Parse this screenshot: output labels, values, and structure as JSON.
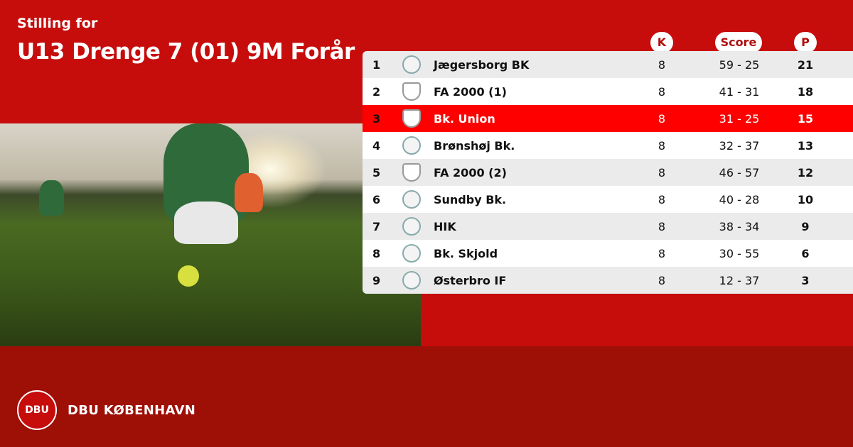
{
  "header": {
    "subtitle": "Stilling for",
    "title": "U13 Drenge 7 (01) 9M Forår"
  },
  "columns": {
    "k": "K",
    "score": "Score",
    "p": "P"
  },
  "rows": [
    {
      "pos": "1",
      "team": "Jægersborg BK",
      "k": "8",
      "score": "59 - 25",
      "p": "21"
    },
    {
      "pos": "2",
      "team": "FA 2000 (1)",
      "k": "8",
      "score": "41 - 31",
      "p": "18"
    },
    {
      "pos": "3",
      "team": "Bk. Union",
      "k": "8",
      "score": "31 - 25",
      "p": "15",
      "highlight": true
    },
    {
      "pos": "4",
      "team": "Brønshøj Bk.",
      "k": "8",
      "score": "32 - 37",
      "p": "13"
    },
    {
      "pos": "5",
      "team": "FA 2000 (2)",
      "k": "8",
      "score": "46 - 57",
      "p": "12"
    },
    {
      "pos": "6",
      "team": "Sundby Bk.",
      "k": "8",
      "score": "40 - 28",
      "p": "10"
    },
    {
      "pos": "7",
      "team": "HIK",
      "k": "8",
      "score": "38 - 34",
      "p": "9"
    },
    {
      "pos": "8",
      "team": "Bk. Skjold",
      "k": "8",
      "score": "30 - 55",
      "p": "6"
    },
    {
      "pos": "9",
      "team": "Østerbro IF",
      "k": "8",
      "score": "12 - 37",
      "p": "3"
    }
  ],
  "footer": {
    "logo_text": "DBU",
    "brand": "DBU KØBENHAVN"
  },
  "colors": {
    "primary": "#c70c0c",
    "footer": "#9e0f06",
    "highlight": "#ff0000"
  }
}
